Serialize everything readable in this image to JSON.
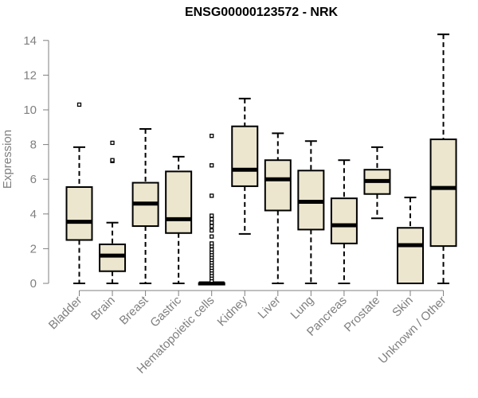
{
  "chart_data": {
    "type": "box",
    "title": "ENSG00000123572 - NRK",
    "xlabel": "",
    "ylabel": "Expression",
    "ylim": [
      0,
      14.5
    ],
    "yticks": [
      0,
      2,
      4,
      6,
      8,
      10,
      12,
      14
    ],
    "grid": false,
    "legend": "none",
    "box_fill": "#ece6cf",
    "box_stroke": "#000000",
    "median_color": "#000000",
    "axis_text_color": "#7f7f7f",
    "categories": [
      "Bladder",
      "Brain",
      "Breast",
      "Gastric",
      "Hematopoietic cells",
      "Kidney",
      "Liver",
      "Lung",
      "Pancreas",
      "Prostate",
      "Skin",
      "Unknown / Other"
    ],
    "boxes": [
      {
        "category": "Bladder",
        "min": 0,
        "q1": 2.5,
        "median": 3.55,
        "q3": 5.55,
        "max": 7.85,
        "outliers": [
          10.3
        ]
      },
      {
        "category": "Brain",
        "min": 0,
        "q1": 0.7,
        "median": 1.6,
        "q3": 2.25,
        "max": 3.5,
        "outliers": [
          7.05,
          7.1,
          8.1
        ]
      },
      {
        "category": "Breast",
        "min": 0,
        "q1": 3.3,
        "median": 4.6,
        "q3": 5.8,
        "max": 8.9,
        "outliers": []
      },
      {
        "category": "Gastric",
        "min": 0,
        "q1": 2.9,
        "median": 3.7,
        "q3": 6.45,
        "max": 7.3,
        "outliers": []
      },
      {
        "category": "Hematopoietic cells",
        "min": 0,
        "q1": 0,
        "median": 0,
        "q3": 0.02,
        "max": 0.05,
        "outliers": [
          0.15,
          0.3,
          0.45,
          0.6,
          0.75,
          0.9,
          1.05,
          1.2,
          1.35,
          1.5,
          1.65,
          1.8,
          1.95,
          2.15,
          2.3,
          2.7,
          3.05,
          3.3,
          3.5,
          3.7,
          3.9,
          5.05,
          6.8,
          8.5
        ]
      },
      {
        "category": "Kidney",
        "min": 2.85,
        "q1": 5.6,
        "median": 6.55,
        "q3": 9.05,
        "max": 10.65,
        "outliers": []
      },
      {
        "category": "Liver",
        "min": 0,
        "q1": 4.2,
        "median": 6.0,
        "q3": 7.1,
        "max": 8.65,
        "outliers": []
      },
      {
        "category": "Lung",
        "min": 0,
        "q1": 3.1,
        "median": 4.7,
        "q3": 6.5,
        "max": 8.2,
        "outliers": []
      },
      {
        "category": "Pancreas",
        "min": 0,
        "q1": 2.3,
        "median": 3.35,
        "q3": 4.9,
        "max": 7.1,
        "outliers": []
      },
      {
        "category": "Prostate",
        "min": 3.75,
        "q1": 5.15,
        "median": 5.9,
        "q3": 6.55,
        "max": 7.85,
        "outliers": []
      },
      {
        "category": "Skin",
        "min": 0,
        "q1": 0,
        "median": 2.2,
        "q3": 3.2,
        "max": 4.95,
        "outliers": []
      },
      {
        "category": "Unknown / Other",
        "min": 0,
        "q1": 2.15,
        "median": 5.5,
        "q3": 8.3,
        "max": 14.35,
        "outliers": []
      }
    ]
  }
}
